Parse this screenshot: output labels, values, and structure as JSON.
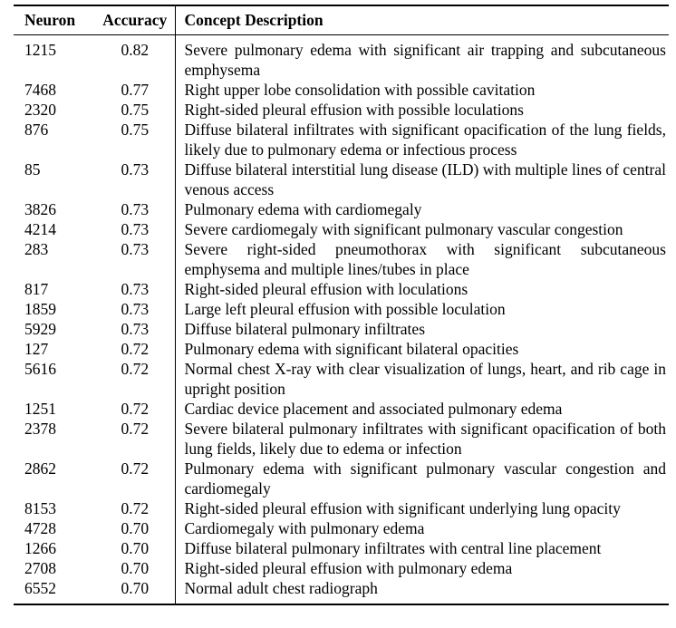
{
  "styles": {
    "background": "#ffffff",
    "text_color": "#000000",
    "rule_color": "#000000"
  },
  "table": {
    "headers": {
      "neuron": "Neuron",
      "accuracy": "Accuracy",
      "description": "Concept Description"
    },
    "rows": [
      {
        "neuron": "1215",
        "accuracy": "0.82",
        "description": "Severe pulmonary edema with significant air trapping and subcutaneous emphysema"
      },
      {
        "neuron": "7468",
        "accuracy": "0.77",
        "description": "Right upper lobe consolidation with possible cavitation"
      },
      {
        "neuron": "2320",
        "accuracy": "0.75",
        "description": "Right-sided pleural effusion with possible loculations"
      },
      {
        "neuron": "876",
        "accuracy": "0.75",
        "description": "Diffuse bilateral infiltrates with significant opacification of the lung fields, likely due to pulmonary edema or infectious process"
      },
      {
        "neuron": "85",
        "accuracy": "0.73",
        "description": "Diffuse bilateral interstitial lung disease (ILD) with multiple lines of central venous access"
      },
      {
        "neuron": "3826",
        "accuracy": "0.73",
        "description": "Pulmonary edema with cardiomegaly"
      },
      {
        "neuron": "4214",
        "accuracy": "0.73",
        "description": "Severe cardiomegaly with significant pulmonary vascular congestion"
      },
      {
        "neuron": "283",
        "accuracy": "0.73",
        "description": "Severe right-sided pneumothorax with significant subcutaneous emphysema and multiple lines/tubes in place"
      },
      {
        "neuron": "817",
        "accuracy": "0.73",
        "description": "Right-sided pleural effusion with loculations"
      },
      {
        "neuron": "1859",
        "accuracy": "0.73",
        "description": "Large left pleural effusion with possible loculation"
      },
      {
        "neuron": "5929",
        "accuracy": "0.73",
        "description": "Diffuse bilateral pulmonary infiltrates"
      },
      {
        "neuron": "127",
        "accuracy": "0.72",
        "description": "Pulmonary edema with significant bilateral opacities"
      },
      {
        "neuron": "5616",
        "accuracy": "0.72",
        "description": "Normal chest X-ray with clear visualization of lungs, heart, and rib cage in upright position"
      },
      {
        "neuron": "1251",
        "accuracy": "0.72",
        "description": "Cardiac device placement and associated pulmonary edema"
      },
      {
        "neuron": "2378",
        "accuracy": "0.72",
        "description": "Severe bilateral pulmonary infiltrates with significant opacification of both lung fields, likely due to edema or infection"
      },
      {
        "neuron": "2862",
        "accuracy": "0.72",
        "description": "Pulmonary edema with significant pulmonary vascular congestion and cardiomegaly"
      },
      {
        "neuron": "8153",
        "accuracy": "0.72",
        "description": "Right-sided pleural effusion with significant underlying lung opacity"
      },
      {
        "neuron": "4728",
        "accuracy": "0.70",
        "description": "Cardiomegaly with pulmonary edema"
      },
      {
        "neuron": "1266",
        "accuracy": "0.70",
        "description": "Diffuse bilateral pulmonary infiltrates with central line placement"
      },
      {
        "neuron": "2708",
        "accuracy": "0.70",
        "description": "Right-sided pleural effusion with pulmonary edema"
      },
      {
        "neuron": "6552",
        "accuracy": "0.70",
        "description": "Normal adult chest radiograph"
      }
    ]
  }
}
